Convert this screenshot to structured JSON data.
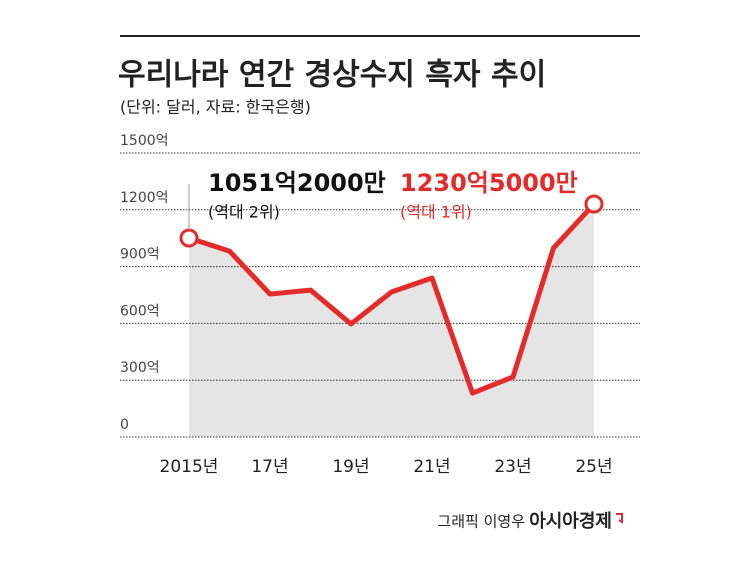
{
  "chart_data": {
    "type": "area-line",
    "title": "우리나라 연간 경상수지 흑자 추이",
    "subtitle": "(단위: 달러, 자료: 한국은행)",
    "categories": [
      "2015년",
      null,
      "17년",
      null,
      "19년",
      null,
      "21년",
      null,
      "23년",
      null,
      "25년"
    ],
    "values": [
      1051.2,
      982,
      755,
      776,
      597,
      766,
      840,
      232,
      317,
      998,
      1230.5
    ],
    "value_labels": [
      "1051억2000만",
      null,
      null,
      null,
      null,
      null,
      null,
      null,
      null,
      null,
      "1230억5000만"
    ],
    "value_notes": [
      "(역대 2위)",
      null,
      null,
      null,
      null,
      null,
      null,
      null,
      null,
      null,
      "(역대 1위)"
    ],
    "color": "#e52a2a",
    "fill": "#e5e5e5",
    "ylim": [
      0,
      1500
    ],
    "yticks": [
      0,
      {
        "value": 300,
        "label": "300억"
      },
      {
        "value": 600,
        "label": "600억"
      },
      {
        "value": 900,
        "label": "900억"
      },
      {
        "value": 1200,
        "label": "1200억"
      },
      {
        "value": 1500,
        "label": "1500억"
      }
    ],
    "grid": true,
    "credit": "그래픽 이영우",
    "brand": "아시아경제"
  }
}
